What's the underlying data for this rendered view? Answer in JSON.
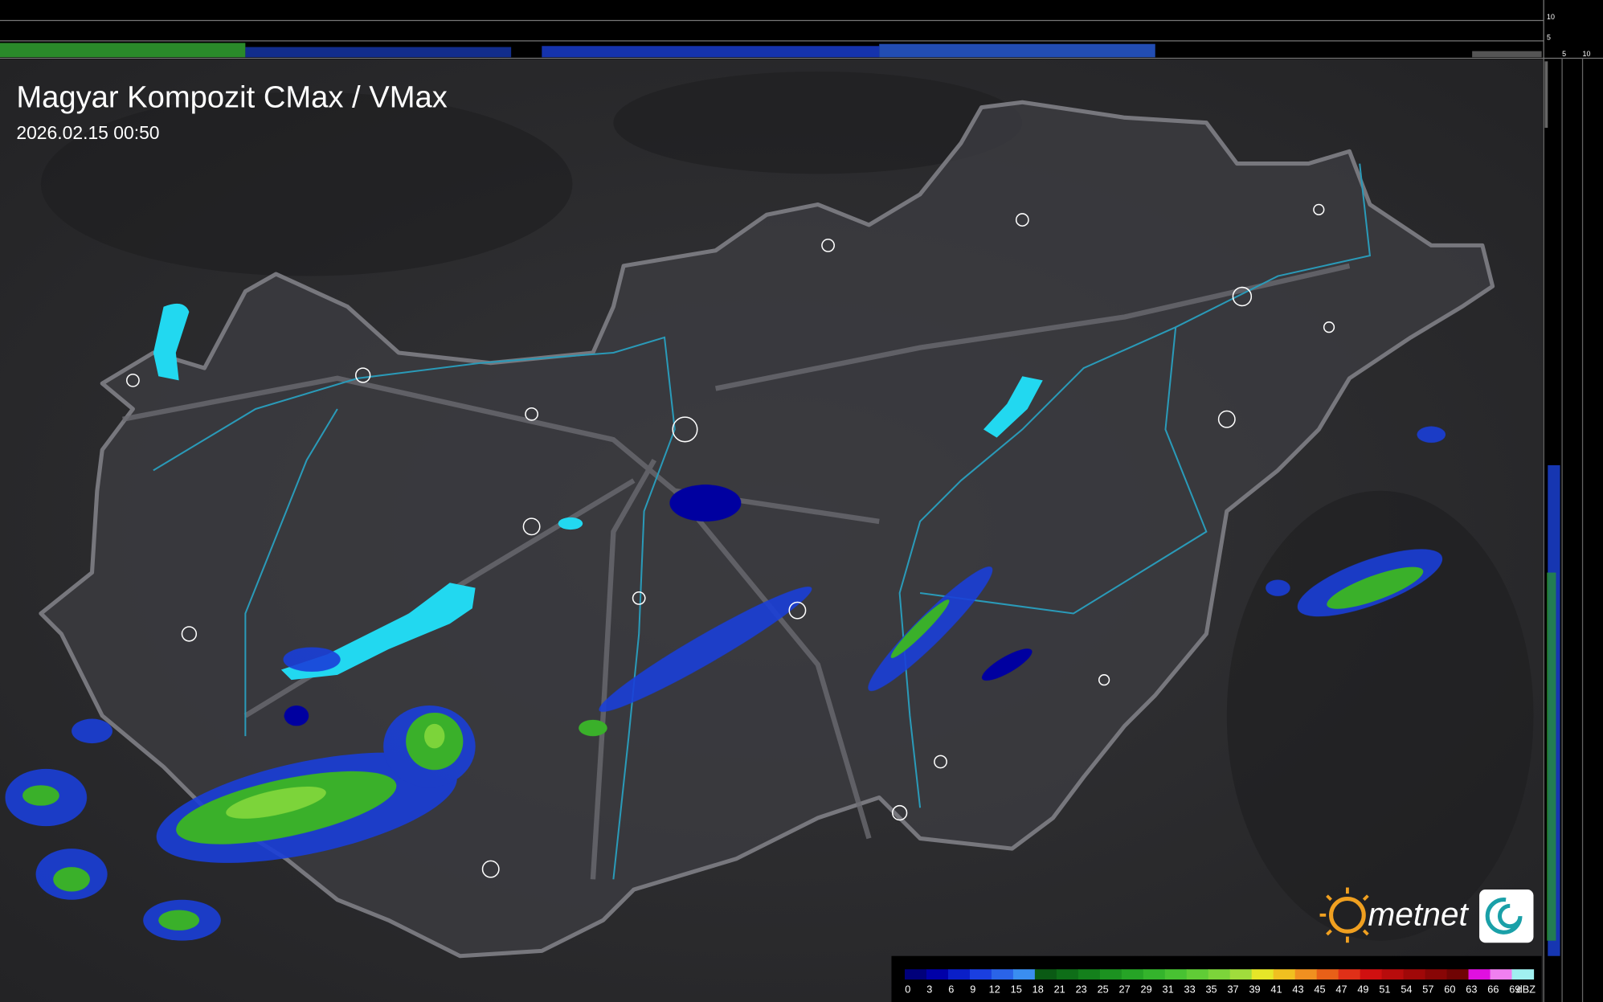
{
  "title": "Magyar Kompozit CMax / VMax",
  "timestamp": "2026.02.15 00:50",
  "logo": "metnet",
  "top_profile_ticks": [
    10,
    5
  ],
  "side_profile_ticks": [
    5,
    10
  ],
  "legend": {
    "unit": "dBZ",
    "values": [
      0,
      3,
      6,
      9,
      12,
      15,
      18,
      21,
      23,
      25,
      27,
      29,
      31,
      33,
      35,
      37,
      39,
      41,
      43,
      45,
      47,
      49,
      51,
      54,
      57,
      60,
      63,
      66,
      69
    ],
    "colors": [
      "#00007a",
      "#0000a8",
      "#0a1fc8",
      "#1a3fe0",
      "#2a64e8",
      "#3a8ef0",
      "#0a5a14",
      "#0e6e18",
      "#14801c",
      "#1c9220",
      "#26a426",
      "#34b42c",
      "#48c232",
      "#60cc36",
      "#7cd43a",
      "#a0dc3c",
      "#e6e628",
      "#f0c020",
      "#f09020",
      "#e86018",
      "#e03018",
      "#d01010",
      "#b80c0c",
      "#a00808",
      "#880606",
      "#700404",
      "#e010e0",
      "#f080f0",
      "#a0f0f0"
    ]
  }
}
